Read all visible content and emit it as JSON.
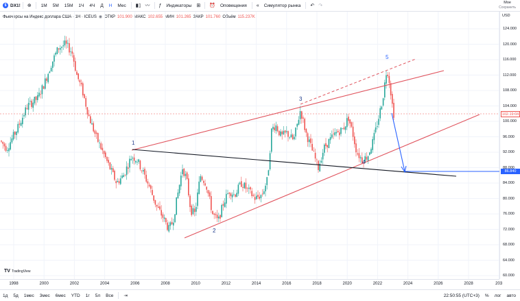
{
  "header": {
    "symbol": "DX1!",
    "intervals": [
      "1М",
      "5М",
      "15М",
      "1Ч",
      "4Ч",
      "Д",
      "Н",
      "Мес"
    ],
    "active_interval": "Н",
    "indicators_label": "Индикаторы",
    "alerts_label": "Оповещения",
    "replay_label": "Симулятор рынка",
    "layout_name": "Мое",
    "save_label": "Сохранить"
  },
  "legend": {
    "title": "Фьючерсы на Индекс доллара США · 1Н · ICEUS",
    "open_label": "ОТКР",
    "open": "101.900",
    "high_label": "МАКС",
    "high": "102.655",
    "low_label": "МИН",
    "low": "101.265",
    "close_label": "ЗАКР",
    "close": "101.760",
    "volume_label": "Объём",
    "volume": "115.237K"
  },
  "yaxis": {
    "currency": "USD",
    "ticks": [
      "124.000",
      "120.000",
      "116.000",
      "112.000",
      "108.000",
      "104.000",
      "100.000",
      "96.000",
      "92.000",
      "88.000",
      "84.000",
      "80.000",
      "76.000",
      "72.000",
      "68.000",
      "64.000",
      "60.000"
    ],
    "current_price_tag": "102.19:04",
    "target_price_tag": "86.840"
  },
  "xaxis": {
    "ticks": [
      "1998",
      "2000",
      "2002",
      "2004",
      "2006",
      "2008",
      "2010",
      "2012",
      "2014",
      "2016",
      "2018",
      "2020",
      "2022",
      "2024",
      "2026",
      "2028",
      "203"
    ]
  },
  "waves": {
    "w1": "1",
    "w2": "2",
    "w3": "3",
    "w4": "4",
    "w5": "5"
  },
  "bottom": {
    "ranges": [
      "1д",
      "5д",
      "1мес",
      "3мес",
      "6мес",
      "YTD",
      "1г",
      "5л",
      "Все"
    ],
    "time": "22:50:55 (UTC+3)",
    "percent": "%",
    "log": "лог",
    "auto": "авто"
  },
  "branding": {
    "text": "TradingView"
  },
  "colors": {
    "up": "#26a69a",
    "down": "#ef5350",
    "channel": "#e0525c",
    "neckline": "#131722",
    "arrow": "#2962ff"
  }
}
